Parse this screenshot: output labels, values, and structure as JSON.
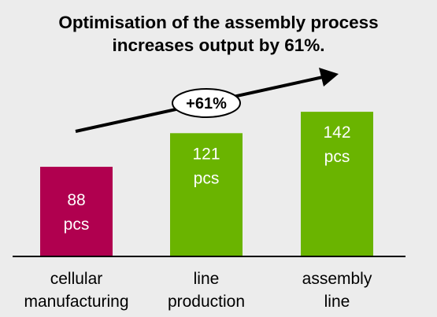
{
  "chart_data": {
    "type": "bar",
    "title_lines": [
      "Optimisation of the assembly process",
      "increases output by 61%."
    ],
    "categories": [
      [
        "cellular",
        "manufacturing"
      ],
      [
        "line",
        "production"
      ],
      [
        "assembly",
        "line"
      ]
    ],
    "series": [
      {
        "values": [
          88,
          121,
          142
        ],
        "value_labels": [
          [
            "88",
            "pcs"
          ],
          [
            "121",
            "pcs"
          ],
          [
            "142",
            "pcs"
          ]
        ],
        "colors": [
          "#b0004f",
          "#6ab400",
          "#6ab400"
        ]
      }
    ],
    "annotation": {
      "label": "+61%",
      "shape": "ellipse",
      "arrow": "rising arrow across bars"
    },
    "ylim": [
      0,
      160
    ],
    "xlabel": "",
    "ylabel": "",
    "grid": false,
    "legend": "none",
    "colors": {
      "background": "#ececec",
      "axis": "#000000",
      "label_text_on_bar": "#ffffff"
    }
  }
}
